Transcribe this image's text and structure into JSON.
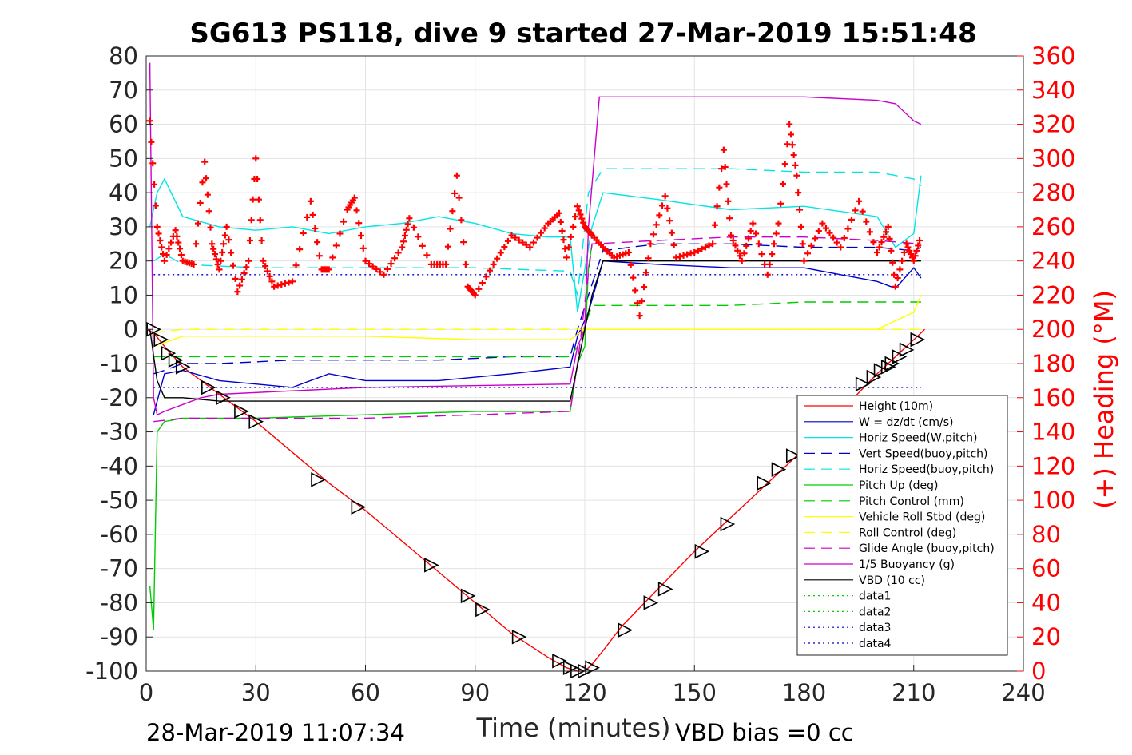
{
  "chart_data": {
    "type": "line",
    "title": "SG613 PS118, dive 9 started 27-Mar-2019 15:51:48",
    "xlabel": "Time (minutes)",
    "ylabel": "",
    "ylabel_right": "(+) Heading (°M)",
    "xlim": [
      0,
      240
    ],
    "ylim": [
      -100,
      80
    ],
    "ylim_right": [
      0,
      360
    ],
    "x_ticks": [
      "0",
      "30",
      "60",
      "90",
      "120",
      "150",
      "180",
      "210",
      "240"
    ],
    "y_ticks": [
      "80",
      "70",
      "60",
      "50",
      "40",
      "30",
      "20",
      "10",
      "0",
      "-10",
      "-20",
      "-30",
      "-40",
      "-50",
      "-60",
      "-70",
      "-80",
      "-90",
      "-100"
    ],
    "y_ticks_right": [
      "360",
      "340",
      "320",
      "300",
      "280",
      "260",
      "240",
      "220",
      "200",
      "180",
      "160",
      "140",
      "120",
      "100",
      "80",
      "60",
      "40",
      "20",
      "0"
    ],
    "grid": true,
    "legend_position": "bottom-right",
    "footer_left": "28-Mar-2019 11:07:34",
    "footer_right": "VBD bias =0 cc",
    "series": [
      {
        "name": "Height (10m)",
        "color": "#ff0000",
        "style": "solid",
        "x": [
          0,
          2,
          5,
          10,
          20,
          30,
          40,
          50,
          60,
          70,
          80,
          90,
          100,
          110,
          115,
          118,
          120,
          122,
          125,
          130,
          140,
          150,
          160,
          170,
          180,
          190,
          200,
          205,
          210,
          213
        ],
        "y": [
          0,
          -1,
          -5,
          -11,
          -19,
          -27,
          -36,
          -45,
          -53,
          -62,
          -71,
          -80,
          -89,
          -96,
          -99,
          -100,
          -100,
          -98,
          -94,
          -87,
          -76,
          -65,
          -55,
          -45,
          -35,
          -24,
          -13,
          -8,
          -3,
          0
        ]
      },
      {
        "name": "W = dz/dt (cm/s)",
        "color": "#0000cc",
        "style": "solid",
        "x": [
          2,
          5,
          10,
          20,
          40,
          50,
          60,
          80,
          100,
          116,
          118,
          121,
          125,
          140,
          160,
          180,
          190,
          200,
          205,
          210,
          212
        ],
        "y": [
          -25,
          -13,
          -12,
          -15,
          -17,
          -13,
          -15,
          -15,
          -13,
          -11,
          -2,
          5,
          20,
          19,
          18,
          18,
          16,
          14,
          12,
          18,
          15
        ]
      },
      {
        "name": "Horiz Speed(W,pitch)",
        "color": "#00e5e5",
        "style": "solid",
        "x": [
          1,
          3,
          5,
          10,
          20,
          30,
          40,
          50,
          60,
          70,
          80,
          90,
          100,
          110,
          116,
          118,
          122,
          125,
          140,
          160,
          180,
          200,
          205,
          210,
          212
        ],
        "y": [
          30,
          40,
          44,
          33,
          30,
          29,
          30,
          28,
          30,
          31,
          33,
          31,
          28,
          27,
          27,
          5,
          30,
          40,
          38,
          35,
          36,
          33,
          24,
          28,
          45
        ]
      },
      {
        "name": "Vert Speed(buoy,pitch)",
        "color": "#0000cc",
        "style": "dashed",
        "x": [
          2,
          5,
          10,
          20,
          40,
          60,
          80,
          100,
          116,
          118,
          121,
          125,
          140,
          160,
          180,
          200,
          210,
          212
        ],
        "y": [
          -13,
          -12,
          -10,
          -10,
          -9,
          -9,
          -9,
          -8,
          -8,
          0,
          10,
          23,
          25,
          25,
          24,
          24,
          23,
          24
        ]
      },
      {
        "name": "Horiz Speed(buoy,pitch)",
        "color": "#00e5e5",
        "style": "dashed",
        "x": [
          2,
          5,
          10,
          30,
          60,
          90,
          116,
          118,
          121,
          125,
          140,
          160,
          180,
          200,
          210,
          212
        ],
        "y": [
          20,
          22,
          19,
          18,
          18,
          18,
          17,
          10,
          40,
          47,
          47,
          47,
          46,
          46,
          44,
          42
        ]
      },
      {
        "name": "Pitch Up (deg)",
        "color": "#00cc00",
        "style": "solid",
        "x": [
          1,
          2,
          3,
          5,
          10,
          30,
          60,
          90,
          116,
          118,
          120,
          121,
          122
        ],
        "y": [
          -75,
          -88,
          -30,
          -27,
          -26,
          -26,
          -25,
          -24,
          -24,
          -10,
          -5,
          18,
          25
        ]
      },
      {
        "name": "Pitch Control (mm)",
        "color": "#00cc00",
        "style": "dashed",
        "x": [
          2,
          10,
          60,
          116,
          118,
          122,
          140,
          160,
          180,
          200,
          212
        ],
        "y": [
          -8,
          -8,
          -8,
          -8,
          -5,
          7,
          7,
          7,
          8,
          8,
          8
        ]
      },
      {
        "name": "Vehicle Roll Stbd (deg)",
        "color": "#ffff00",
        "style": "solid",
        "x": [
          2,
          10,
          30,
          60,
          90,
          116,
          120,
          125,
          140,
          160,
          180,
          200,
          210,
          212
        ],
        "y": [
          -5,
          -2,
          -2,
          -2,
          -3,
          -3,
          0,
          0,
          0,
          0,
          0,
          0,
          5,
          10
        ]
      },
      {
        "name": "Roll Control (deg)",
        "color": "#ffff00",
        "style": "dashed",
        "x": [
          2,
          10,
          60,
          116,
          120,
          140,
          180,
          212
        ],
        "y": [
          -1,
          0,
          0,
          0,
          0,
          0,
          0,
          0
        ]
      },
      {
        "name": "Glide Angle (buoy,pitch)",
        "color": "#cc00cc",
        "style": "dashed",
        "x": [
          2,
          10,
          30,
          60,
          90,
          116,
          118,
          122,
          140,
          160,
          180,
          200,
          212
        ],
        "y": [
          -27,
          -26,
          -26,
          -26,
          -25,
          -24,
          -10,
          25,
          26,
          27,
          27,
          26,
          25
        ]
      },
      {
        "name": "1/5 Buoyancy (g)",
        "color": "#cc00cc",
        "style": "solid",
        "x": [
          1,
          2,
          3,
          5,
          10,
          15,
          20,
          60,
          116,
          118,
          120,
          121,
          124,
          130,
          150,
          180,
          200,
          205,
          210,
          212
        ],
        "y": [
          78,
          -20,
          -25,
          -24,
          -22,
          -20,
          -19,
          -17,
          -16,
          -5,
          0,
          30,
          68,
          68,
          68,
          68,
          67,
          66,
          61,
          60
        ]
      },
      {
        "name": "VBD (10 cc)",
        "color": "#000000",
        "style": "solid",
        "x": [
          1,
          3,
          5,
          10,
          20,
          116,
          120,
          122,
          125,
          140,
          160,
          180,
          200,
          212
        ],
        "y": [
          0,
          -15,
          -20,
          -20,
          -21,
          -21,
          0,
          10,
          20,
          20,
          20,
          20,
          20,
          20
        ]
      },
      {
        "name": "data1",
        "color": "#00cc00",
        "style": "dotted",
        "x": [],
        "y": []
      },
      {
        "name": "data2",
        "color": "#00cc00",
        "style": "dotted",
        "x": [],
        "y": []
      },
      {
        "name": "data3",
        "color": "#0000cc",
        "style": "dotted",
        "x": [
          2,
          116,
          118,
          212
        ],
        "y": [
          -17,
          -17,
          -17,
          -17
        ]
      },
      {
        "name": "data4",
        "color": "#0000cc",
        "style": "dotted",
        "x": [
          2,
          116,
          118,
          212
        ],
        "y": [
          16,
          16,
          16,
          16
        ]
      }
    ],
    "heading": {
      "color": "#ff0000",
      "marker": "+",
      "x": [
        1,
        3,
        5,
        8,
        10,
        13,
        16,
        18,
        20,
        22,
        25,
        28,
        30,
        32,
        35,
        40,
        45,
        48,
        50,
        55,
        57,
        60,
        65,
        70,
        72,
        78,
        82,
        85,
        88,
        90,
        95,
        100,
        105,
        110,
        113,
        115,
        118,
        120,
        122,
        125,
        128,
        132,
        135,
        138,
        142,
        145,
        150,
        155,
        158,
        160,
        163,
        166,
        170,
        173,
        176,
        178,
        180,
        185,
        190,
        195,
        200,
        203,
        205,
        208,
        210,
        212
      ],
      "y": [
        322,
        260,
        240,
        258,
        240,
        238,
        298,
        250,
        235,
        260,
        222,
        240,
        300,
        240,
        225,
        228,
        275,
        235,
        235,
        270,
        277,
        240,
        232,
        248,
        265,
        238,
        238,
        290,
        225,
        220,
        238,
        255,
        248,
        262,
        268,
        242,
        272,
        260,
        255,
        248,
        242,
        245,
        208,
        250,
        278,
        242,
        245,
        250,
        305,
        255,
        240,
        262,
        232,
        262,
        320,
        290,
        240,
        262,
        248,
        275,
        245,
        260,
        225,
        250,
        240,
        255
      ]
    },
    "markers": {
      "shape": "triangle",
      "x": [
        2,
        4,
        6,
        8,
        10,
        17,
        21,
        26,
        30,
        47,
        58,
        78,
        88,
        92,
        102,
        113,
        116,
        118,
        120,
        122,
        131,
        138,
        142,
        152,
        159,
        169,
        173,
        177,
        196,
        199,
        201,
        203,
        204,
        206,
        208,
        211
      ],
      "y": [
        0,
        -3,
        -7,
        -9,
        -11,
        -17,
        -20,
        -24,
        -27,
        -44,
        -52,
        -69,
        -78,
        -82,
        -90,
        -97,
        -99,
        -100,
        -100,
        -99,
        -88,
        -80,
        -76,
        -65,
        -57,
        -45,
        -41,
        -37,
        -16,
        -14,
        -12,
        -11,
        -10,
        -8,
        -6,
        -3
      ]
    }
  }
}
